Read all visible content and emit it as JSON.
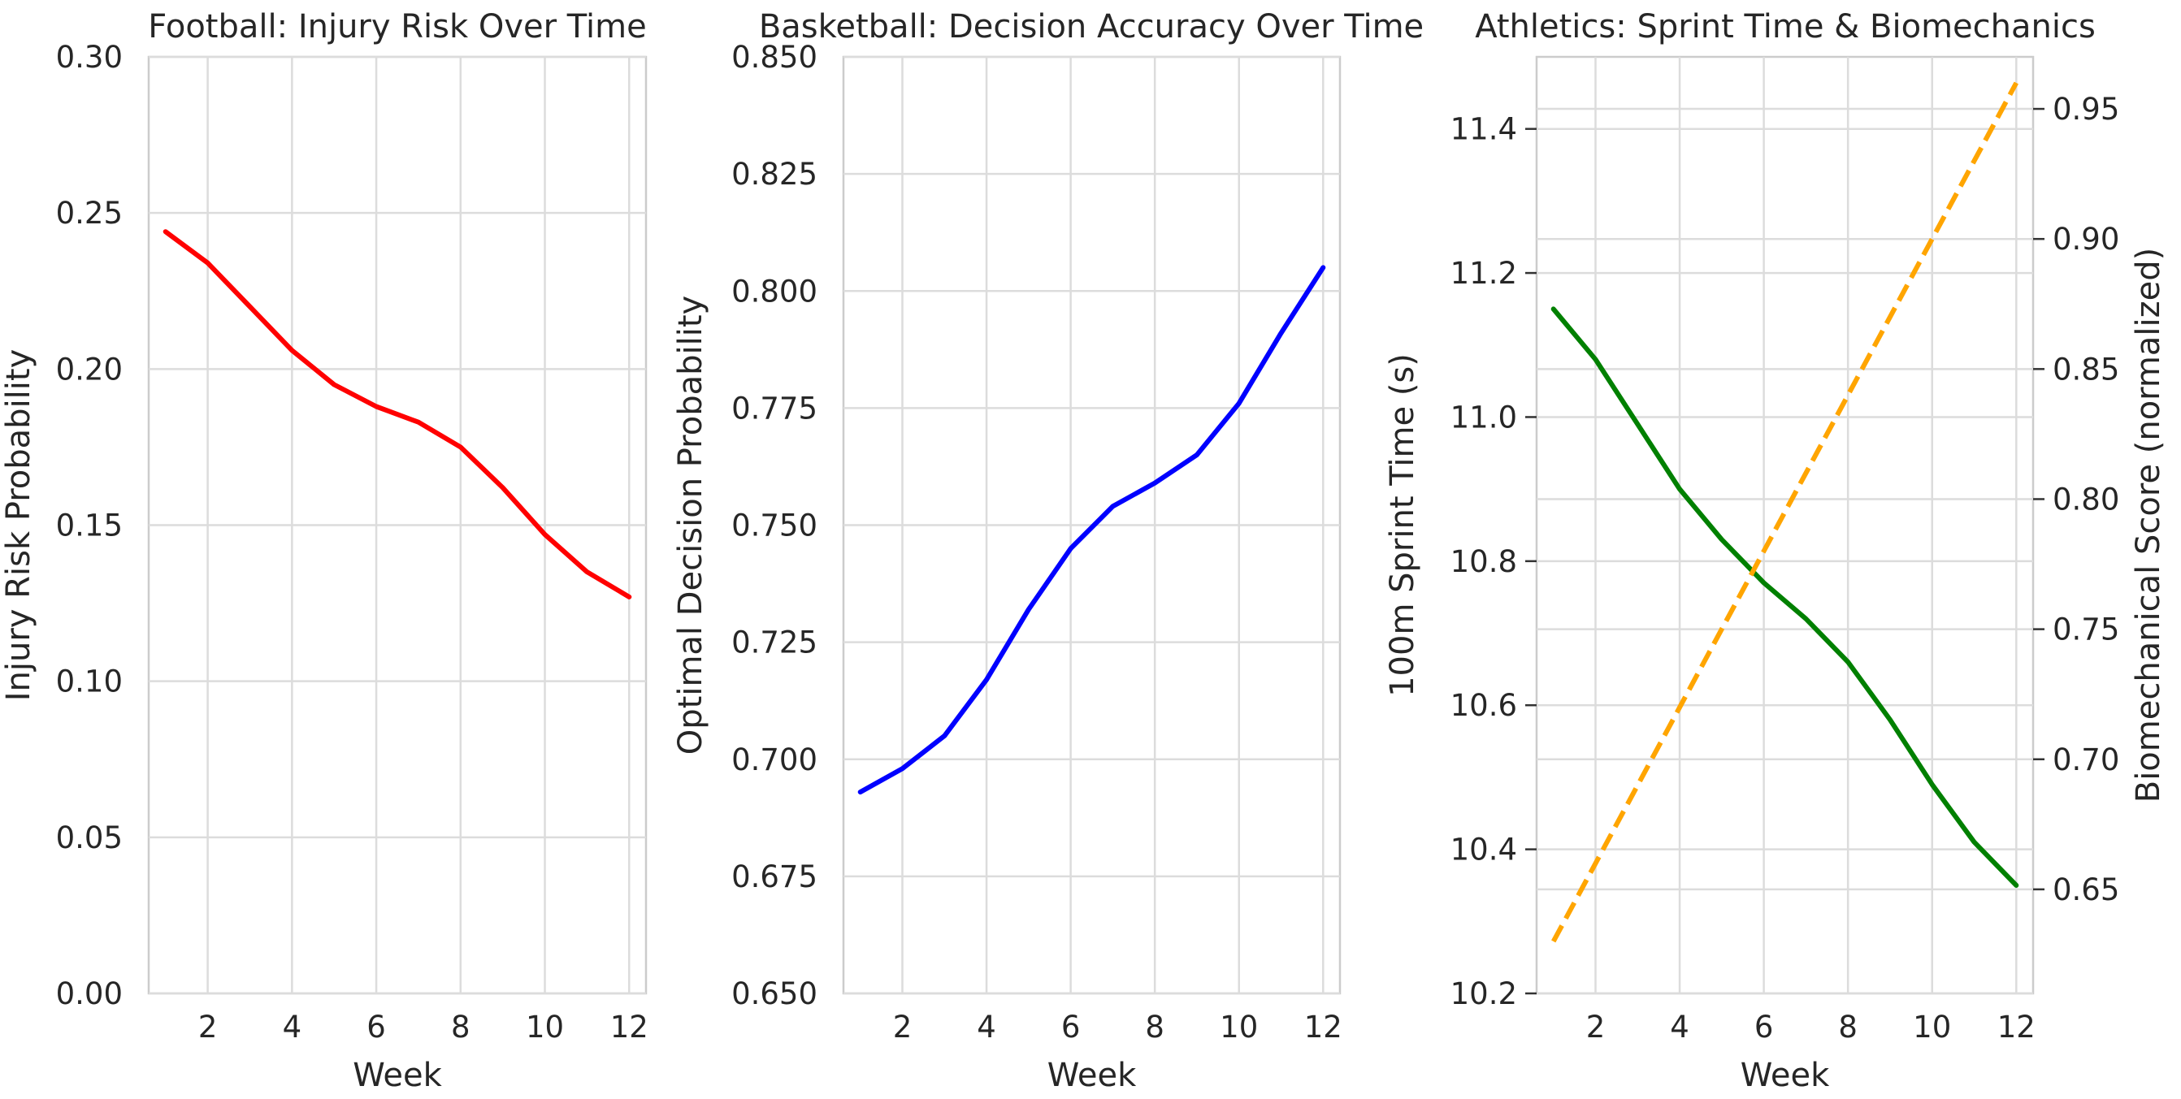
{
  "chart_data": [
    {
      "type": "line",
      "title": "Football: Injury Risk Over Time",
      "xlabel": "Week",
      "ylabel": "Injury Risk Probability",
      "xlim": [
        0.6,
        12.4
      ],
      "ylim": [
        0.0,
        0.3
      ],
      "xticks": [
        2,
        4,
        6,
        8,
        10,
        12
      ],
      "xtick_labels": [
        "2",
        "4",
        "6",
        "8",
        "10",
        "12"
      ],
      "yticks": [
        0.0,
        0.05,
        0.1,
        0.15,
        0.2,
        0.25,
        0.3
      ],
      "ytick_labels": [
        "0.00",
        "0.05",
        "0.10",
        "0.15",
        "0.20",
        "0.25",
        "0.30"
      ],
      "grid": true,
      "series": [
        {
          "name": "Injury Risk",
          "color": "#ff0000",
          "style": "solid",
          "x": [
            1,
            2,
            3,
            4,
            5,
            6,
            7,
            8,
            9,
            10,
            11,
            12
          ],
          "values": [
            0.244,
            0.234,
            0.22,
            0.206,
            0.195,
            0.188,
            0.183,
            0.175,
            0.162,
            0.147,
            0.135,
            0.127
          ]
        }
      ]
    },
    {
      "type": "line",
      "title": "Basketball: Decision Accuracy Over Time",
      "xlabel": "Week",
      "ylabel": "Optimal Decision Probability",
      "xlim": [
        0.6,
        12.4
      ],
      "ylim": [
        0.65,
        0.85
      ],
      "xticks": [
        2,
        4,
        6,
        8,
        10,
        12
      ],
      "xtick_labels": [
        "2",
        "4",
        "6",
        "8",
        "10",
        "12"
      ],
      "yticks": [
        0.65,
        0.675,
        0.7,
        0.725,
        0.75,
        0.775,
        0.8,
        0.825,
        0.85
      ],
      "ytick_labels": [
        "0.650",
        "0.675",
        "0.700",
        "0.725",
        "0.750",
        "0.775",
        "0.800",
        "0.825",
        "0.850"
      ],
      "grid": true,
      "series": [
        {
          "name": "Decision Accuracy",
          "color": "#0000ff",
          "style": "solid",
          "x": [
            1,
            2,
            3,
            4,
            5,
            6,
            7,
            8,
            9,
            10,
            11,
            12
          ],
          "values": [
            0.693,
            0.698,
            0.705,
            0.717,
            0.732,
            0.745,
            0.754,
            0.759,
            0.765,
            0.776,
            0.791,
            0.805
          ]
        }
      ]
    },
    {
      "type": "line",
      "title": "Athletics: Sprint Time & Biomechanics",
      "xlabel": "Week",
      "ylabel": "100m Sprint Time (s)",
      "ylabel_right": "Biomechanical Score (normalized)",
      "xlim": [
        0.6,
        12.4
      ],
      "ylim": [
        10.2,
        11.5
      ],
      "ylim_right": [
        0.61,
        0.97
      ],
      "xticks": [
        2,
        4,
        6,
        8,
        10,
        12
      ],
      "xtick_labels": [
        "2",
        "4",
        "6",
        "8",
        "10",
        "12"
      ],
      "yticks": [
        10.2,
        10.4,
        10.6,
        10.8,
        11.0,
        11.2,
        11.4
      ],
      "ytick_labels": [
        "10.2",
        "10.4",
        "10.6",
        "10.8",
        "11.0",
        "11.2",
        "11.4"
      ],
      "yticks_right": [
        0.65,
        0.7,
        0.75,
        0.8,
        0.85,
        0.9,
        0.95
      ],
      "ytick_labels_right": [
        "0.65",
        "0.70",
        "0.75",
        "0.80",
        "0.85",
        "0.90",
        "0.95"
      ],
      "grid": true,
      "series": [
        {
          "name": "100m Sprint Time",
          "axis": "left",
          "color": "#008000",
          "style": "solid",
          "x": [
            1,
            2,
            3,
            4,
            5,
            6,
            7,
            8,
            9,
            10,
            11,
            12
          ],
          "values": [
            11.15,
            11.08,
            10.99,
            10.9,
            10.83,
            10.77,
            10.72,
            10.66,
            10.58,
            10.49,
            10.41,
            10.35
          ]
        },
        {
          "name": "Biomechanical Score",
          "axis": "right",
          "color": "#ffa500",
          "style": "dashed",
          "x": [
            1,
            2,
            3,
            4,
            5,
            6,
            7,
            8,
            9,
            10,
            11,
            12
          ],
          "values": [
            0.63,
            0.66,
            0.69,
            0.72,
            0.75,
            0.78,
            0.81,
            0.84,
            0.87,
            0.9,
            0.93,
            0.96
          ]
        }
      ]
    }
  ]
}
